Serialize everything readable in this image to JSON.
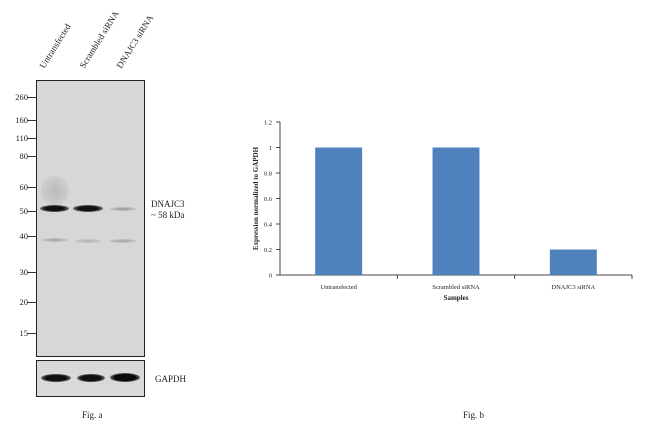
{
  "blot": {
    "lanes": [
      "Untransfected",
      "Scrambled siRNA",
      "DNAJC3 siRNA"
    ],
    "markers": [
      "260",
      "160",
      "110",
      "80",
      "60",
      "50",
      "40",
      "30",
      "20",
      "15"
    ],
    "target_label": "DNAJC3",
    "target_size": "~ 58 kDa",
    "loading_label": "GAPDH",
    "caption": "Fig. a"
  },
  "chart_caption": "Fig. b",
  "chart_data": {
    "type": "bar",
    "categories": [
      "Untransfected",
      "Scrambled siRNA",
      "DNAJC3 siRNA"
    ],
    "values": [
      1,
      1,
      0.2
    ],
    "xlabel": "Samples",
    "ylabel": "Expression normalized to GAPDH",
    "ylim": [
      0,
      1.2
    ],
    "yticks": [
      "0",
      "0.2",
      "0.4",
      "0.6",
      "0.8",
      "1",
      "1.2"
    ],
    "bar_color": "#4f81bd",
    "grid": false
  }
}
